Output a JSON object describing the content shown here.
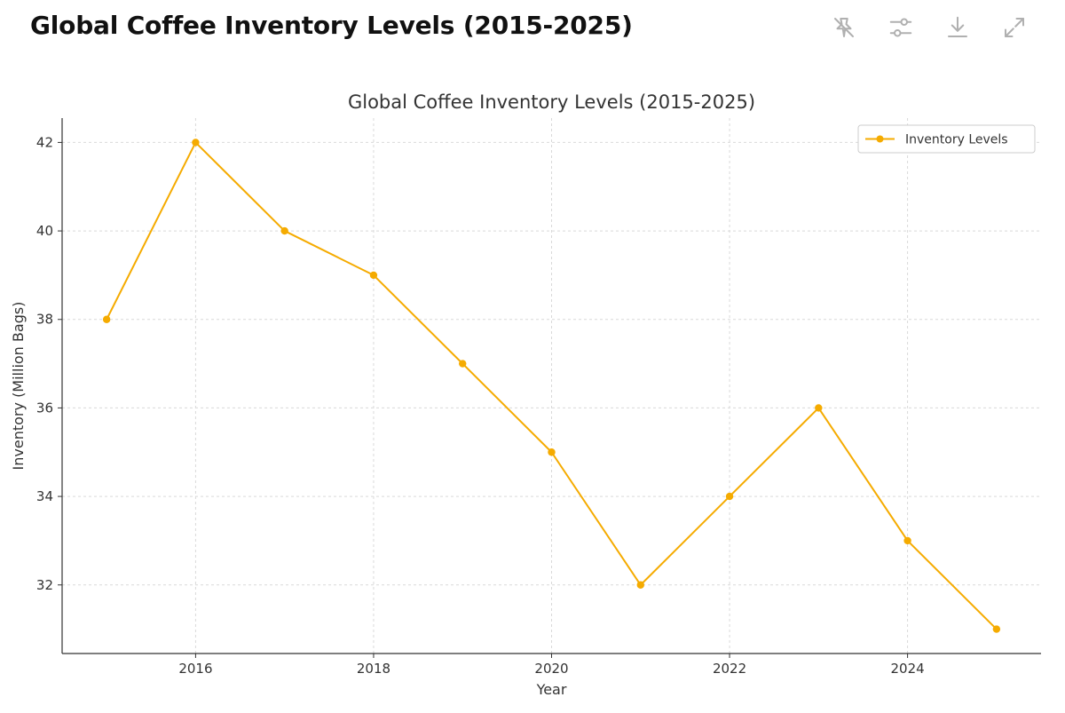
{
  "header": {
    "title": "Global Coffee Inventory Levels (2015-2025)",
    "toolbar": [
      {
        "name": "interactive-toggle-button",
        "icon": "pin-off-icon"
      },
      {
        "name": "chart-settings-button",
        "icon": "sliders-icon"
      },
      {
        "name": "download-button",
        "icon": "download-icon"
      },
      {
        "name": "expand-button",
        "icon": "expand-icon"
      }
    ]
  },
  "colors": {
    "series": "#f5ab00",
    "axis": "#333333",
    "grid": "#d9d9d9",
    "icon": "#b0b0b0"
  },
  "chart_data": {
    "type": "line",
    "title": "Global Coffee Inventory Levels (2015-2025)",
    "xlabel": "Year",
    "ylabel": "Inventory (Million Bags)",
    "x": [
      2015,
      2016,
      2017,
      2018,
      2019,
      2020,
      2021,
      2022,
      2023,
      2024,
      2025
    ],
    "series": [
      {
        "name": "Inventory Levels",
        "values": [
          38,
          42,
          40,
          39,
          37,
          35,
          32,
          34,
          36,
          33,
          31
        ]
      }
    ],
    "xlim": [
      2014.5,
      2025.5
    ],
    "ylim": [
      30.45,
      42.55
    ],
    "xticks": [
      2016,
      2018,
      2020,
      2022,
      2024
    ],
    "yticks": [
      32,
      34,
      36,
      38,
      40,
      42
    ],
    "grid": true,
    "legend": "top-right"
  }
}
